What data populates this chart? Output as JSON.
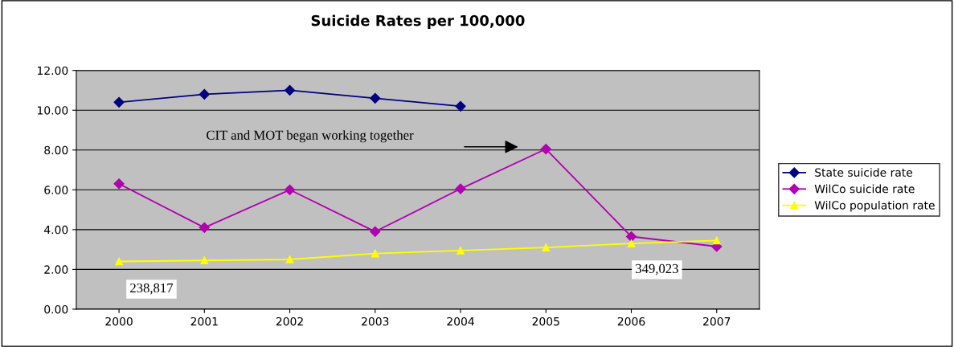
{
  "chart_data": {
    "type": "line",
    "title": "Suicide Rates per 100,000",
    "categories": [
      "2000",
      "2001",
      "2002",
      "2003",
      "2004",
      "2005",
      "2006",
      "2007"
    ],
    "series": [
      {
        "name": "State suicide rate",
        "color": "#000080",
        "marker": "diamond",
        "values": [
          10.4,
          10.8,
          11.0,
          10.6,
          10.2,
          null,
          null,
          null
        ]
      },
      {
        "name": "WilCo suicide rate",
        "color": "#b000b0",
        "marker": "diamond",
        "values": [
          6.3,
          4.1,
          6.0,
          3.9,
          6.05,
          8.05,
          3.65,
          3.15
        ]
      },
      {
        "name": "WilCo population rate",
        "color": "#ffff00",
        "marker": "triangle",
        "values": [
          2.4,
          2.45,
          2.5,
          2.8,
          2.95,
          3.1,
          3.3,
          3.45
        ]
      }
    ],
    "ylim": [
      0,
      12
    ],
    "yticks": [
      {
        "value": 0,
        "label": "0.00"
      },
      {
        "value": 2,
        "label": "2.00"
      },
      {
        "value": 4,
        "label": "4.00"
      },
      {
        "value": 6,
        "label": "6.00"
      },
      {
        "value": 8,
        "label": "8.00"
      },
      {
        "value": 10,
        "label": "10.00"
      },
      {
        "value": 12,
        "label": "12.00"
      }
    ],
    "grid": "y",
    "legend": "right",
    "annotations": [
      "CIT and MOT began working together",
      "238,817",
      "349,023"
    ]
  }
}
